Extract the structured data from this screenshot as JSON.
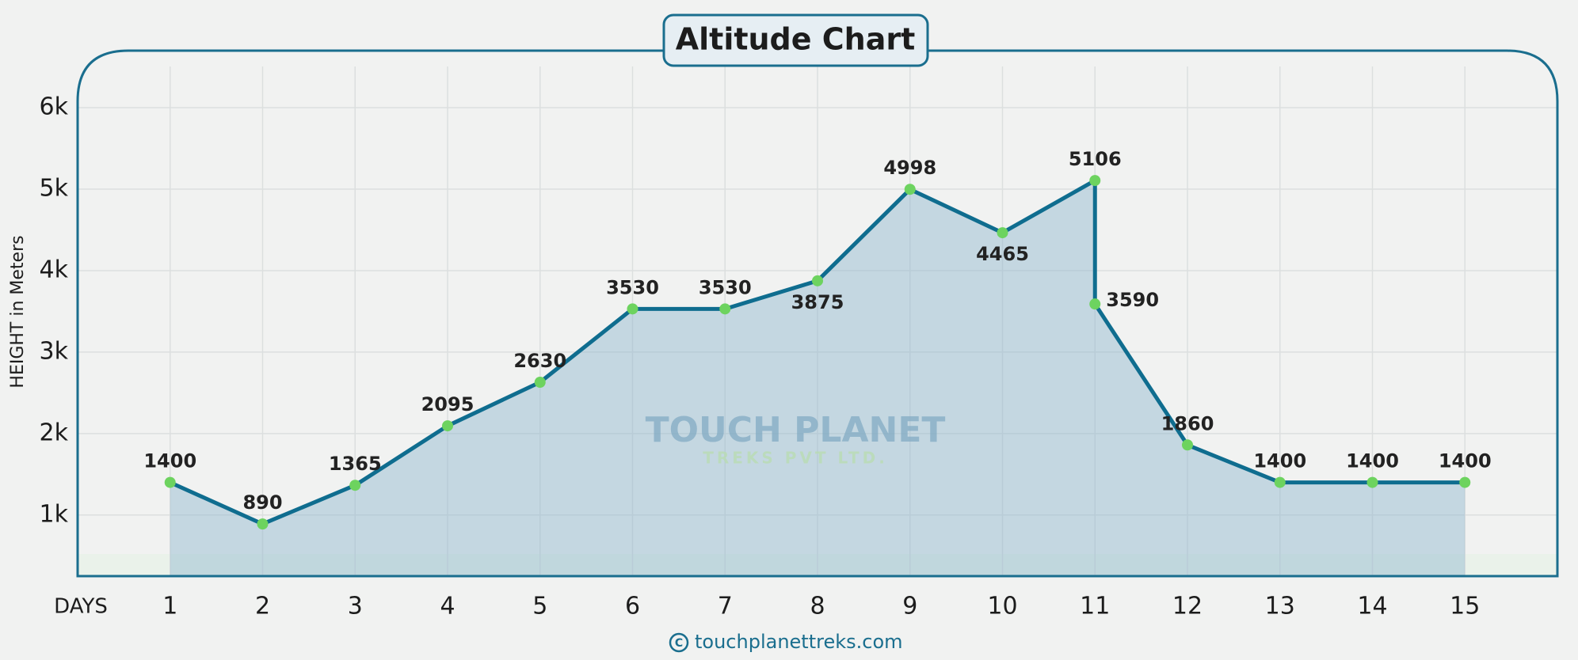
{
  "chart_data": {
    "type": "line",
    "title": "Altitude Chart",
    "y_label": "HEIGHT in Meters",
    "x_label": "DAYS",
    "watermark": "TOUCH PLANET",
    "watermark_sub": "TREKS PVT LTD.",
    "footer": "touchplanettreks.com",
    "x": [
      1,
      2,
      3,
      4,
      5,
      6,
      7,
      8,
      9,
      10,
      11,
      11,
      12,
      13,
      14,
      15
    ],
    "series": [
      {
        "name": "Altitude",
        "color": "#0f6d8f",
        "marker_color": "#6dd35f",
        "values": [
          1400,
          890,
          1365,
          2095,
          2630,
          3530,
          3530,
          3875,
          4998,
          4465,
          5106,
          3590,
          1860,
          1400,
          1400,
          1400
        ]
      }
    ],
    "xlim": [
      0,
      16
    ],
    "xticks": [
      1,
      2,
      3,
      4,
      5,
      6,
      7,
      8,
      9,
      10,
      11,
      12,
      13,
      14,
      15
    ],
    "ylim": [
      250,
      6700
    ],
    "yticks": [
      {
        "value": 1000,
        "label": "1k"
      },
      {
        "value": 2000,
        "label": "2k"
      },
      {
        "value": 3000,
        "label": "3k"
      },
      {
        "value": 4000,
        "label": "4k"
      },
      {
        "value": 5000,
        "label": "5k"
      },
      {
        "value": 6000,
        "label": "6k"
      }
    ],
    "grid": true
  }
}
